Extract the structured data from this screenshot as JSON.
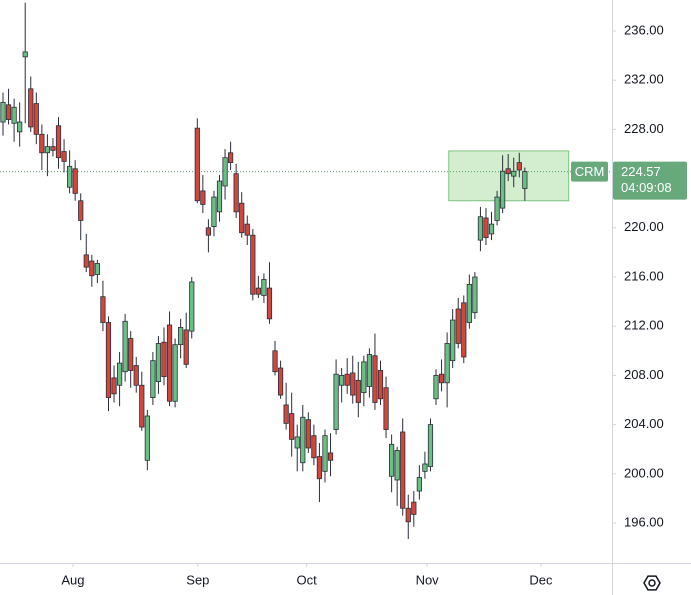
{
  "chart_data": {
    "type": "candlestick",
    "symbol": "CRM",
    "countdown": "04:09:08",
    "last_price": 224.57,
    "up_color": "#6cbf84",
    "down_color": "#d2463c",
    "open": [
      228.6,
      230,
      228.5,
      227.8,
      233.9,
      231.3,
      230.1,
      227.6,
      226.1,
      226.6,
      228.3,
      226.2,
      223.3,
      224.8,
      222.2,
      217.8,
      217.3,
      216.2,
      214.4,
      212.3,
      207.8,
      207.2,
      208.3,
      211,
      208.8,
      207.2,
      201.1,
      206.2,
      207.5,
      210.7,
      212.1,
      205.9,
      210.5,
      211.7,
      211.6,
      228.1,
      223,
      220,
      220.1,
      221.3,
      223.4,
      226.1,
      224.4,
      222,
      220.3,
      219.4,
      215.1,
      214.5,
      215.1,
      210,
      208.6,
      205.6,
      204.9,
      202.1,
      200.9,
      204.4,
      203.1,
      201.4,
      200.2,
      201.7,
      203.6,
      207.2,
      208.1,
      208.2,
      207.6,
      206.6,
      207.1,
      209.6,
      208.4,
      207,
      199.8,
      199.5,
      203.4,
      197.2,
      197.7,
      198.6,
      200.2,
      200.6,
      206.1,
      208.1,
      207.4,
      209.2,
      213.4,
      213.9,
      212.3,
      213.1,
      219,
      220.8,
      219.5,
      220.6,
      221.6,
      224.8,
      224.2,
      225.3,
      223.2
    ],
    "high": [
      231,
      231.3,
      230.5,
      230.2,
      238.3,
      232.3,
      231,
      228.4,
      227.6,
      227.3,
      229,
      227.2,
      226.3,
      225.5,
      222.8,
      219.5,
      217.8,
      217.4,
      215.7,
      212.8,
      208.8,
      209.9,
      213,
      211.6,
      209.5,
      208.3,
      205.2,
      209.9,
      211.2,
      211.9,
      213.2,
      211,
      212.6,
      213.1,
      216,
      228.9,
      224.3,
      220.7,
      223,
      224.3,
      226.4,
      227,
      225.2,
      222.9,
      221,
      219.9,
      216.1,
      216.3,
      217.2,
      210.8,
      209.2,
      207.4,
      206.6,
      204,
      205.6,
      205,
      204,
      202.5,
      203.6,
      203.3,
      209.3,
      208.6,
      209.4,
      209.6,
      209.1,
      209.6,
      210.2,
      211.4,
      209.2,
      207.9,
      203.2,
      202.2,
      204.5,
      198.3,
      198.6,
      200.7,
      201.8,
      204.5,
      208.5,
      209.3,
      211.5,
      213.4,
      214.3,
      214.5,
      216.2,
      216.4,
      221.7,
      221.6,
      221.3,
      223,
      225.9,
      226,
      225.7,
      226.1,
      224.9
    ],
    "low": [
      227.5,
      228.4,
      227,
      226.6,
      228.5,
      227.8,
      226.8,
      224.7,
      224.2,
      225.8,
      224.8,
      224.5,
      222.8,
      222.2,
      219,
      216.4,
      215.2,
      215.5,
      211.6,
      205.1,
      205.8,
      205.5,
      207.5,
      207,
      206.6,
      203.5,
      200.3,
      205.6,
      206.5,
      207.2,
      205.5,
      205.4,
      209.4,
      208.6,
      211,
      222,
      221.2,
      218,
      219.3,
      220.5,
      222.3,
      224.7,
      220.8,
      219.2,
      218.6,
      214.1,
      214.3,
      213.9,
      212.2,
      208,
      206.1,
      203.6,
      201.4,
      200.2,
      200.2,
      201.7,
      200.7,
      197.7,
      199.3,
      199.8,
      203.2,
      205.8,
      206.5,
      205.7,
      204.6,
      205.5,
      206.2,
      205.2,
      205.6,
      202.9,
      198.5,
      197.4,
      196.6,
      194.7,
      195.7,
      197.9,
      199.6,
      200.2,
      205.6,
      206.7,
      205.4,
      208.6,
      210.2,
      209,
      211.8,
      212.6,
      218.1,
      218.6,
      219,
      220.2,
      221.2,
      223.8,
      223.3,
      224.1,
      222.2
    ],
    "close": [
      230.2,
      228.8,
      229.8,
      228.6,
      234.3,
      228.2,
      227.6,
      226.1,
      226.6,
      226.3,
      225.7,
      225.4,
      225,
      222.8,
      220.6,
      216.8,
      216.1,
      217.1,
      212.3,
      206.2,
      206.5,
      209,
      212.4,
      208.4,
      207.2,
      203.8,
      204.7,
      209.2,
      210.6,
      207.9,
      205.9,
      210.5,
      211.9,
      208.9,
      215.6,
      222.2,
      221.9,
      219.4,
      222.5,
      223.8,
      225.7,
      225.3,
      221.3,
      219.6,
      219.4,
      214.6,
      214.6,
      215.8,
      212.6,
      208.3,
      206.4,
      204.1,
      202.8,
      203,
      204.6,
      202.1,
      201.3,
      199.6,
      203.1,
      201.1,
      208.1,
      208,
      207.2,
      206.4,
      205.8,
      209.1,
      209.7,
      205.8,
      206.1,
      203.6,
      202.4,
      201.9,
      197.2,
      196.1,
      196.7,
      199.7,
      200.8,
      204,
      208,
      207.4,
      210.6,
      212.5,
      210.6,
      209.5,
      215.4,
      216,
      220.9,
      219.2,
      220.3,
      222.5,
      224.6,
      224.4,
      224.6,
      224.7,
      224.57
    ],
    "xlim": [
      -0.54,
      109.7
    ],
    "xticks": [
      {
        "value": 12.6,
        "label": "Aug"
      },
      {
        "value": 35.1,
        "label": "Sep"
      },
      {
        "value": 54.7,
        "label": "Oct"
      },
      {
        "value": 76.4,
        "label": "Nov"
      },
      {
        "value": 96.9,
        "label": "Dec"
      }
    ],
    "ylim": [
      192.75,
      238.52
    ],
    "yticks": [
      {
        "value": 196,
        "label": "196.00"
      },
      {
        "value": 200,
        "label": "200.00"
      },
      {
        "value": 204,
        "label": "204.00"
      },
      {
        "value": 208,
        "label": "208.00"
      },
      {
        "value": 212,
        "label": "212.00"
      },
      {
        "value": 216,
        "label": "216.00"
      },
      {
        "value": 220,
        "label": "220.00"
      },
      {
        "value": 224,
        "label": "224.00"
      },
      {
        "value": 228,
        "label": "228.00"
      },
      {
        "value": 232,
        "label": "232.00"
      },
      {
        "value": 236,
        "label": "236.00"
      }
    ],
    "highlight_box": {
      "x": [
        80.3,
        101.9
      ],
      "y": [
        222.2,
        226.25
      ],
      "color": "#a7dca0"
    }
  }
}
